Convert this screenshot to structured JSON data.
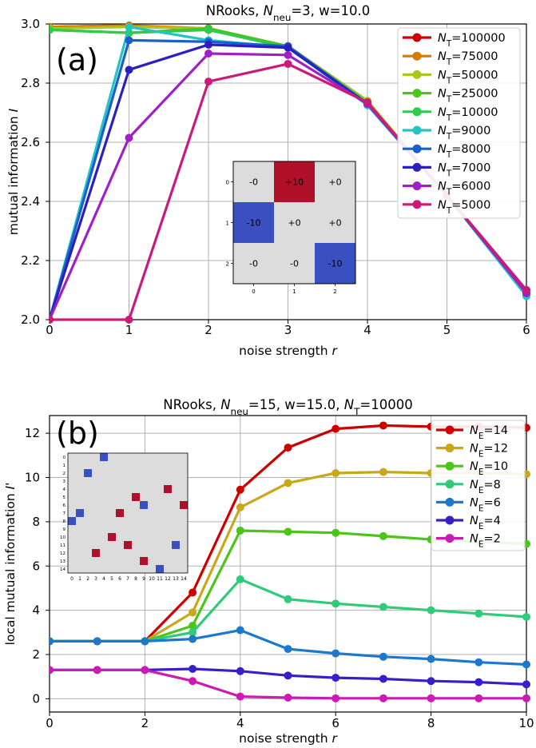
{
  "chart_data": [
    {
      "type": "line",
      "panel_label": "(a)",
      "title": "NRooks, N_neu=3, w=10.0",
      "title_parts": {
        "prefix": "NRooks, ",
        "var": "N",
        "sub": "neu",
        "rest": "=3, w=10.0"
      },
      "xlabel": "noise strength r",
      "xlabel_parts": {
        "text": "noise strength ",
        "var": "r"
      },
      "ylabel": "mutual information I",
      "ylabel_parts": {
        "text": "mutual information ",
        "var": "I"
      },
      "xlim": [
        0,
        6
      ],
      "ylim": [
        2.0,
        3.0
      ],
      "xticks": [
        "0",
        "1",
        "2",
        "3",
        "4",
        "5",
        "6"
      ],
      "yticks": [
        "2.0",
        "2.2",
        "2.4",
        "2.6",
        "2.8",
        "3.0"
      ],
      "legend_position": "top-right",
      "x": [
        0,
        1,
        2,
        3,
        4,
        5,
        6
      ],
      "series": [
        {
          "name": "N_T=100000",
          "legend": "=100000",
          "sub": "T",
          "color": "#cc0000",
          "values": [
            2.99,
            2.995,
            2.98,
            2.925,
            2.74,
            2.42,
            2.1
          ]
        },
        {
          "name": "N_T=75000",
          "legend": "=75000",
          "sub": "T",
          "color": "#d97a00",
          "values": [
            2.99,
            2.995,
            2.985,
            2.925,
            2.74,
            2.42,
            2.1
          ]
        },
        {
          "name": "N_T=50000",
          "legend": "=50000",
          "sub": "T",
          "color": "#a8c81a",
          "values": [
            2.985,
            2.99,
            2.985,
            2.925,
            2.74,
            2.42,
            2.09
          ]
        },
        {
          "name": "N_T=25000",
          "legend": "=25000",
          "sub": "T",
          "color": "#4cc41a",
          "values": [
            2.98,
            2.97,
            2.985,
            2.925,
            2.735,
            2.42,
            2.09
          ]
        },
        {
          "name": "N_T=10000",
          "legend": "=10000",
          "sub": "T",
          "color": "#2ecc4a",
          "values": [
            2.98,
            2.97,
            2.98,
            2.92,
            2.735,
            2.42,
            2.08
          ]
        },
        {
          "name": "N_T=9000",
          "legend": "=9000",
          "sub": "T",
          "color": "#22c4c4",
          "values": [
            2.0,
            2.99,
            2.945,
            2.92,
            2.725,
            2.42,
            2.08
          ]
        },
        {
          "name": "N_T=8000",
          "legend": "=8000",
          "sub": "T",
          "color": "#1c5fcc",
          "values": [
            2.0,
            2.945,
            2.94,
            2.925,
            2.73,
            2.42,
            2.09
          ]
        },
        {
          "name": "N_T=7000",
          "legend": "=7000",
          "sub": "T",
          "color": "#2a1fc0",
          "values": [
            2.0,
            2.845,
            2.93,
            2.92,
            2.73,
            2.42,
            2.09
          ]
        },
        {
          "name": "N_T=6000",
          "legend": "=6000",
          "sub": "T",
          "color": "#a020c8",
          "values": [
            2.0,
            2.615,
            2.9,
            2.895,
            2.73,
            2.42,
            2.09
          ]
        },
        {
          "name": "N_T=5000",
          "legend": "=5000",
          "sub": "T",
          "color": "#cc1a7a",
          "values": [
            2.0,
            2.0,
            2.805,
            2.865,
            2.735,
            2.42,
            2.1
          ]
        }
      ],
      "inset": {
        "type": "heatmap",
        "xticks": [
          "0",
          "1",
          "2"
        ],
        "yticks": [
          "0",
          "1",
          "2"
        ],
        "cells": [
          [
            "-0",
            "+10",
            "+0"
          ],
          [
            "-10",
            "+0",
            "+0"
          ],
          [
            "-0",
            "-0",
            "-10"
          ]
        ],
        "values": [
          [
            0,
            10,
            0
          ],
          [
            -10,
            0,
            0
          ],
          [
            0,
            0,
            -10
          ]
        ],
        "colors": {
          "positive": "#b0102a",
          "negative": "#3a50c0",
          "neutral": "#dcdcdc"
        }
      }
    },
    {
      "type": "line",
      "panel_label": "(b)",
      "title": "NRooks, N_neu=15, w=15.0, N_T=10000",
      "title_parts": {
        "prefix": "NRooks, ",
        "var": "N",
        "sub": "neu",
        "rest": "=15, w=15.0, ",
        "var2": "N",
        "sub2": "T",
        "rest2": "=10000"
      },
      "xlabel": "noise strength r",
      "xlabel_parts": {
        "text": "noise strength ",
        "var": "r"
      },
      "ylabel": "local mutual information I'",
      "ylabel_parts": {
        "text": "local mutual information ",
        "var": "I'"
      },
      "xlim": [
        0,
        10
      ],
      "ylim": [
        -0.6,
        12.8
      ],
      "xticks": [
        "0",
        "2",
        "4",
        "6",
        "8",
        "10"
      ],
      "yticks": [
        "0",
        "2",
        "4",
        "6",
        "8",
        "10",
        "12"
      ],
      "legend_position": "top-right",
      "x": [
        0,
        1,
        2,
        3,
        4,
        5,
        6,
        7,
        8,
        9,
        10
      ],
      "series": [
        {
          "name": "N_E=14",
          "legend": "=14",
          "sub": "E",
          "color": "#cc0000",
          "values": [
            2.6,
            2.6,
            2.6,
            4.8,
            9.45,
            11.35,
            12.2,
            12.35,
            12.3,
            12.3,
            12.25
          ]
        },
        {
          "name": "N_E=12",
          "legend": "=12",
          "sub": "E",
          "color": "#c8a81a",
          "values": [
            2.6,
            2.6,
            2.6,
            3.9,
            8.65,
            9.75,
            10.2,
            10.25,
            10.2,
            10.2,
            10.15
          ]
        },
        {
          "name": "N_E=10",
          "legend": "=10",
          "sub": "E",
          "color": "#4cc41a",
          "values": [
            2.6,
            2.6,
            2.6,
            3.3,
            7.6,
            7.55,
            7.5,
            7.35,
            7.2,
            7.1,
            7.0
          ]
        },
        {
          "name": "N_E=8",
          "legend": "=8",
          "sub": "E",
          "color": "#2ecc7a",
          "values": [
            2.6,
            2.6,
            2.6,
            3.0,
            5.4,
            4.5,
            4.3,
            4.15,
            4.0,
            3.85,
            3.7
          ]
        },
        {
          "name": "N_E=6",
          "legend": "=6",
          "sub": "E",
          "color": "#1c78cc",
          "values": [
            2.6,
            2.6,
            2.6,
            2.7,
            3.1,
            2.25,
            2.05,
            1.9,
            1.8,
            1.65,
            1.55
          ]
        },
        {
          "name": "N_E=4",
          "legend": "=4",
          "sub": "E",
          "color": "#3a1fc8",
          "values": [
            1.3,
            1.3,
            1.3,
            1.35,
            1.25,
            1.05,
            0.95,
            0.9,
            0.8,
            0.75,
            0.65
          ]
        },
        {
          "name": "N_E=2",
          "legend": "=2",
          "sub": "E",
          "color": "#cc1ab4",
          "values": [
            1.3,
            1.3,
            1.3,
            0.8,
            0.1,
            0.05,
            0.02,
            0.02,
            0.02,
            0.02,
            0.02
          ]
        }
      ],
      "inset": {
        "type": "heatmap",
        "size": 15,
        "xticks": [
          "0",
          "1",
          "2",
          "3",
          "4",
          "5",
          "6",
          "7",
          "8",
          "9",
          "10",
          "11",
          "12",
          "13",
          "14"
        ],
        "yticks": [
          "0",
          "1",
          "2",
          "3",
          "4",
          "5",
          "6",
          "7",
          "8",
          "9",
          "10",
          "11",
          "12",
          "13",
          "14"
        ],
        "blue_cells": [
          [
            4,
            0
          ],
          [
            2,
            2
          ],
          [
            9,
            6
          ],
          [
            1,
            7
          ],
          [
            0,
            8
          ],
          [
            13,
            11
          ],
          [
            11,
            14
          ]
        ],
        "red_cells": [
          [
            12,
            4
          ],
          [
            8,
            5
          ],
          [
            14,
            6
          ],
          [
            6,
            7
          ],
          [
            5,
            10
          ],
          [
            3,
            12
          ],
          [
            7,
            11
          ],
          [
            9,
            13
          ]
        ],
        "colors": {
          "positive": "#b0102a",
          "negative": "#3a50c0",
          "neutral": "#dcdcdc"
        }
      }
    }
  ]
}
